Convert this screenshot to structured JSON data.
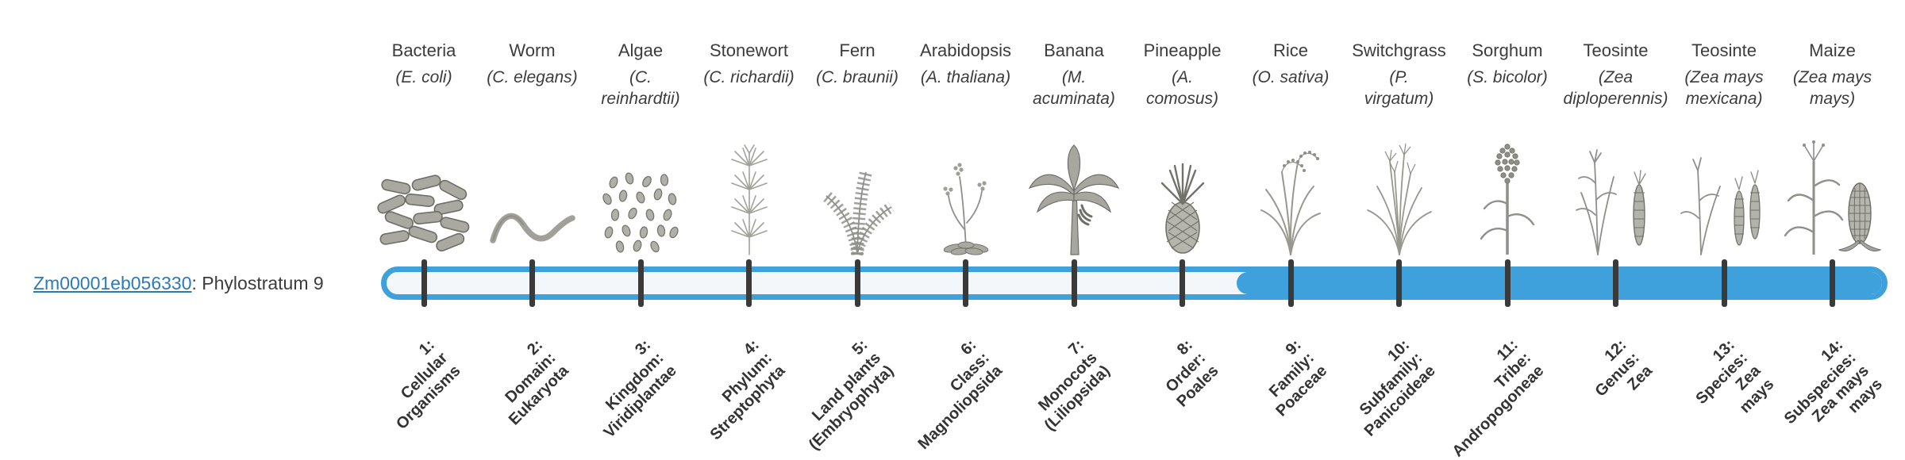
{
  "colors": {
    "accent": "#3ea1dc",
    "bar_background": "#f4f7fa",
    "tick": "#3a3a3a",
    "link": "#2c7bb8",
    "text": "#3c3c3c"
  },
  "gene": {
    "link_text": "Zm00001eb056330",
    "suffix": ": Phylostratum 9"
  },
  "timeline": {
    "total_strata": 14,
    "highlight_start_stratum": 9
  },
  "strata": [
    {
      "name": "Bacteria",
      "sci": "(E. coli)",
      "icon": "bacteria-icon",
      "label": "1:\nCellular\nOrganisms"
    },
    {
      "name": "Worm",
      "sci": "(C. elegans)",
      "icon": "worm-icon",
      "label": "2:\nDomain:\nEukaryota"
    },
    {
      "name": "Algae",
      "sci": "(C.\nreinhardtii)",
      "icon": "algae-icon",
      "label": "3:\nKingdom:\nViridiplantae"
    },
    {
      "name": "Stonewort",
      "sci": "(C. richardii)",
      "icon": "stonewort-icon",
      "label": "4:\nPhylum:\nStreptophyta"
    },
    {
      "name": "Fern",
      "sci": "(C. braunii)",
      "icon": "fern-icon",
      "label": "5:\nLand plants\n(Embryophyta)"
    },
    {
      "name": "Arabidopsis",
      "sci": "(A. thaliana)",
      "icon": "arabidopsis-icon",
      "label": "6:\nClass:\nMagnoliopsida"
    },
    {
      "name": "Banana",
      "sci": "(M.\nacuminata)",
      "icon": "banana-icon",
      "label": "7:\nMonocots\n(Liliopsida)"
    },
    {
      "name": "Pineapple",
      "sci": "(A.\ncomosus)",
      "icon": "pineapple-icon",
      "label": "8:\nOrder:\nPoales"
    },
    {
      "name": "Rice",
      "sci": "(O. sativa)",
      "icon": "rice-icon",
      "label": "9:\nFamily:\nPoaceae"
    },
    {
      "name": "Switchgrass",
      "sci": "(P.\nvirgatum)",
      "icon": "switchgrass-icon",
      "label": "10:\nSubfamily:\nPanicoideae"
    },
    {
      "name": "Sorghum",
      "sci": "(S. bicolor)",
      "icon": "sorghum-icon",
      "label": "11:\nTribe:\nAndropogoneae"
    },
    {
      "name": "Teosinte",
      "sci": "(Zea\ndiploperennis)",
      "icon": "teosinte-diplo-icon",
      "label": "12:\nGenus:\nZea"
    },
    {
      "name": "Teosinte",
      "sci": "(Zea mays\nmexicana)",
      "icon": "teosinte-mex-icon",
      "label": "13:\nSpecies:\nZea\nmays"
    },
    {
      "name": "Maize",
      "sci": "(Zea mays\nmays)",
      "icon": "maize-icon",
      "label": "14:\nSubspecies:\nZea mays\nmays"
    }
  ]
}
